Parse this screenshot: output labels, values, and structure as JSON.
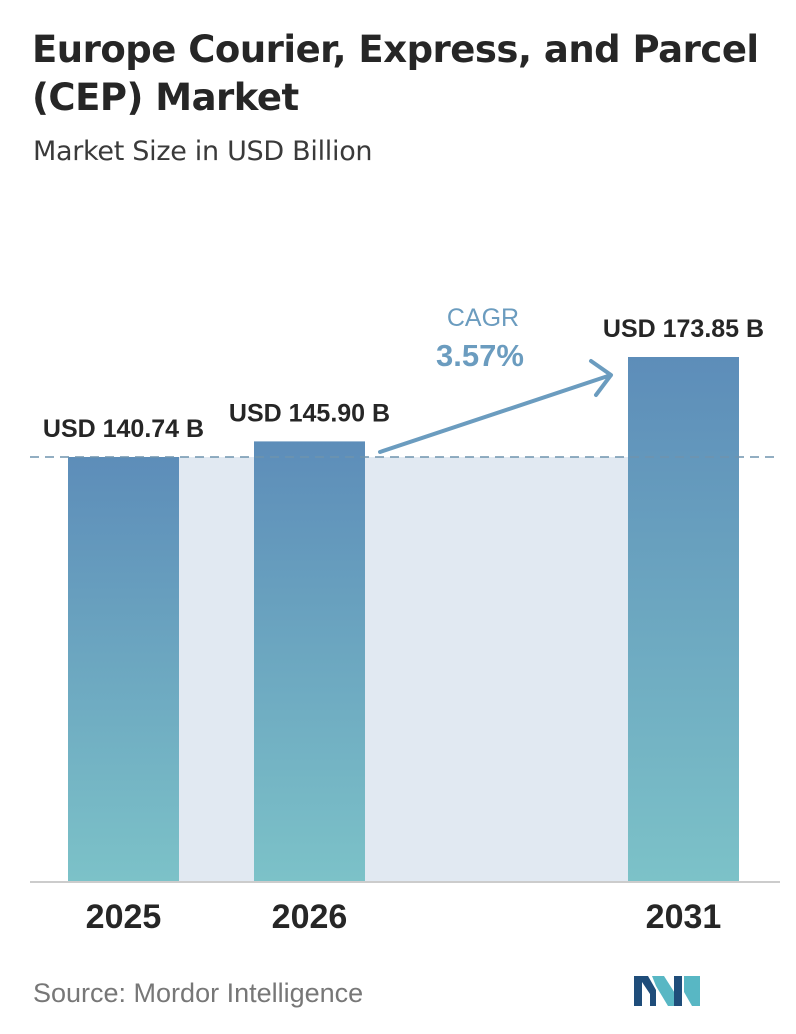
{
  "title": "Europe Courier, Express, and Parcel (CEP) Market",
  "subtitle": "Market Size in USD Billion",
  "source": "Source:  Mordor Intelligence",
  "logo_icon": "mordor-intelligence-logo-icon",
  "colors": {
    "bar_top": "#5d8db9",
    "bar_bottom": "#7cc2c8",
    "band": "#e1e9f2",
    "cagr": "#6b9cbf",
    "dashed_line": "#6f94ad",
    "logo_dark": "#1f4d7a",
    "logo_light": "#58b7c4"
  },
  "chart_data": {
    "type": "bar",
    "title": "Europe Courier, Express, and Parcel (CEP) Market",
    "subtitle": "Market Size in USD Billion",
    "categories": [
      "2025",
      "2026",
      "2031"
    ],
    "values": [
      140.74,
      145.9,
      173.85
    ],
    "value_labels": [
      "USD 140.74 B",
      "USD 145.90 B",
      "USD 173.85 B"
    ],
    "unit": "USD Billion",
    "cagr": {
      "label": "CAGR",
      "value": "3.57%",
      "from": "2026",
      "to": "2031"
    },
    "reference_line": 140.74,
    "grid": false,
    "legend": "none"
  }
}
